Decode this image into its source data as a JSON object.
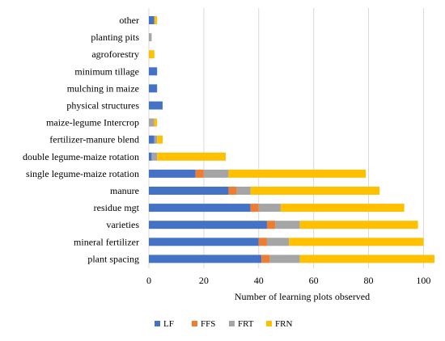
{
  "chart_data": {
    "type": "bar",
    "orientation": "horizontal",
    "stacked": true,
    "title": "",
    "xlabel": "Number of learning plots observed",
    "ylabel": "",
    "xlim": [
      0,
      104
    ],
    "xticks": [
      0,
      20,
      40,
      60,
      80,
      100
    ],
    "grid": true,
    "legend_position": "bottom",
    "categories": [
      "other",
      "planting pits",
      "agroforestry",
      "minimum tillage",
      "mulching in maize",
      "physical structures",
      "maize-legume Intercrop",
      "fertilizer-manure blend",
      "double legume-maize rotation",
      "single legume-maize rotation",
      "manure",
      "residue mgt",
      "varieties",
      "mineral fertilizer",
      "plant spacing"
    ],
    "series": [
      {
        "name": "LF",
        "color": "#4472C4",
        "values": [
          2,
          0,
          0,
          3,
          3,
          5,
          0,
          2,
          1,
          17,
          29,
          37,
          43,
          40,
          41
        ]
      },
      {
        "name": "FFS",
        "color": "#ED7D31",
        "values": [
          0,
          0,
          0,
          0,
          0,
          0,
          0,
          0,
          0,
          3,
          3,
          3,
          3,
          3,
          3
        ]
      },
      {
        "name": "FRT",
        "color": "#A5A5A5",
        "values": [
          0,
          1,
          0,
          0,
          0,
          0,
          2,
          1,
          2,
          9,
          5,
          8,
          9,
          8,
          11
        ]
      },
      {
        "name": "FRN",
        "color": "#FFC000",
        "values": [
          1,
          0,
          2,
          0,
          0,
          0,
          1,
          2,
          25,
          50,
          47,
          45,
          43,
          49,
          49
        ]
      }
    ]
  }
}
